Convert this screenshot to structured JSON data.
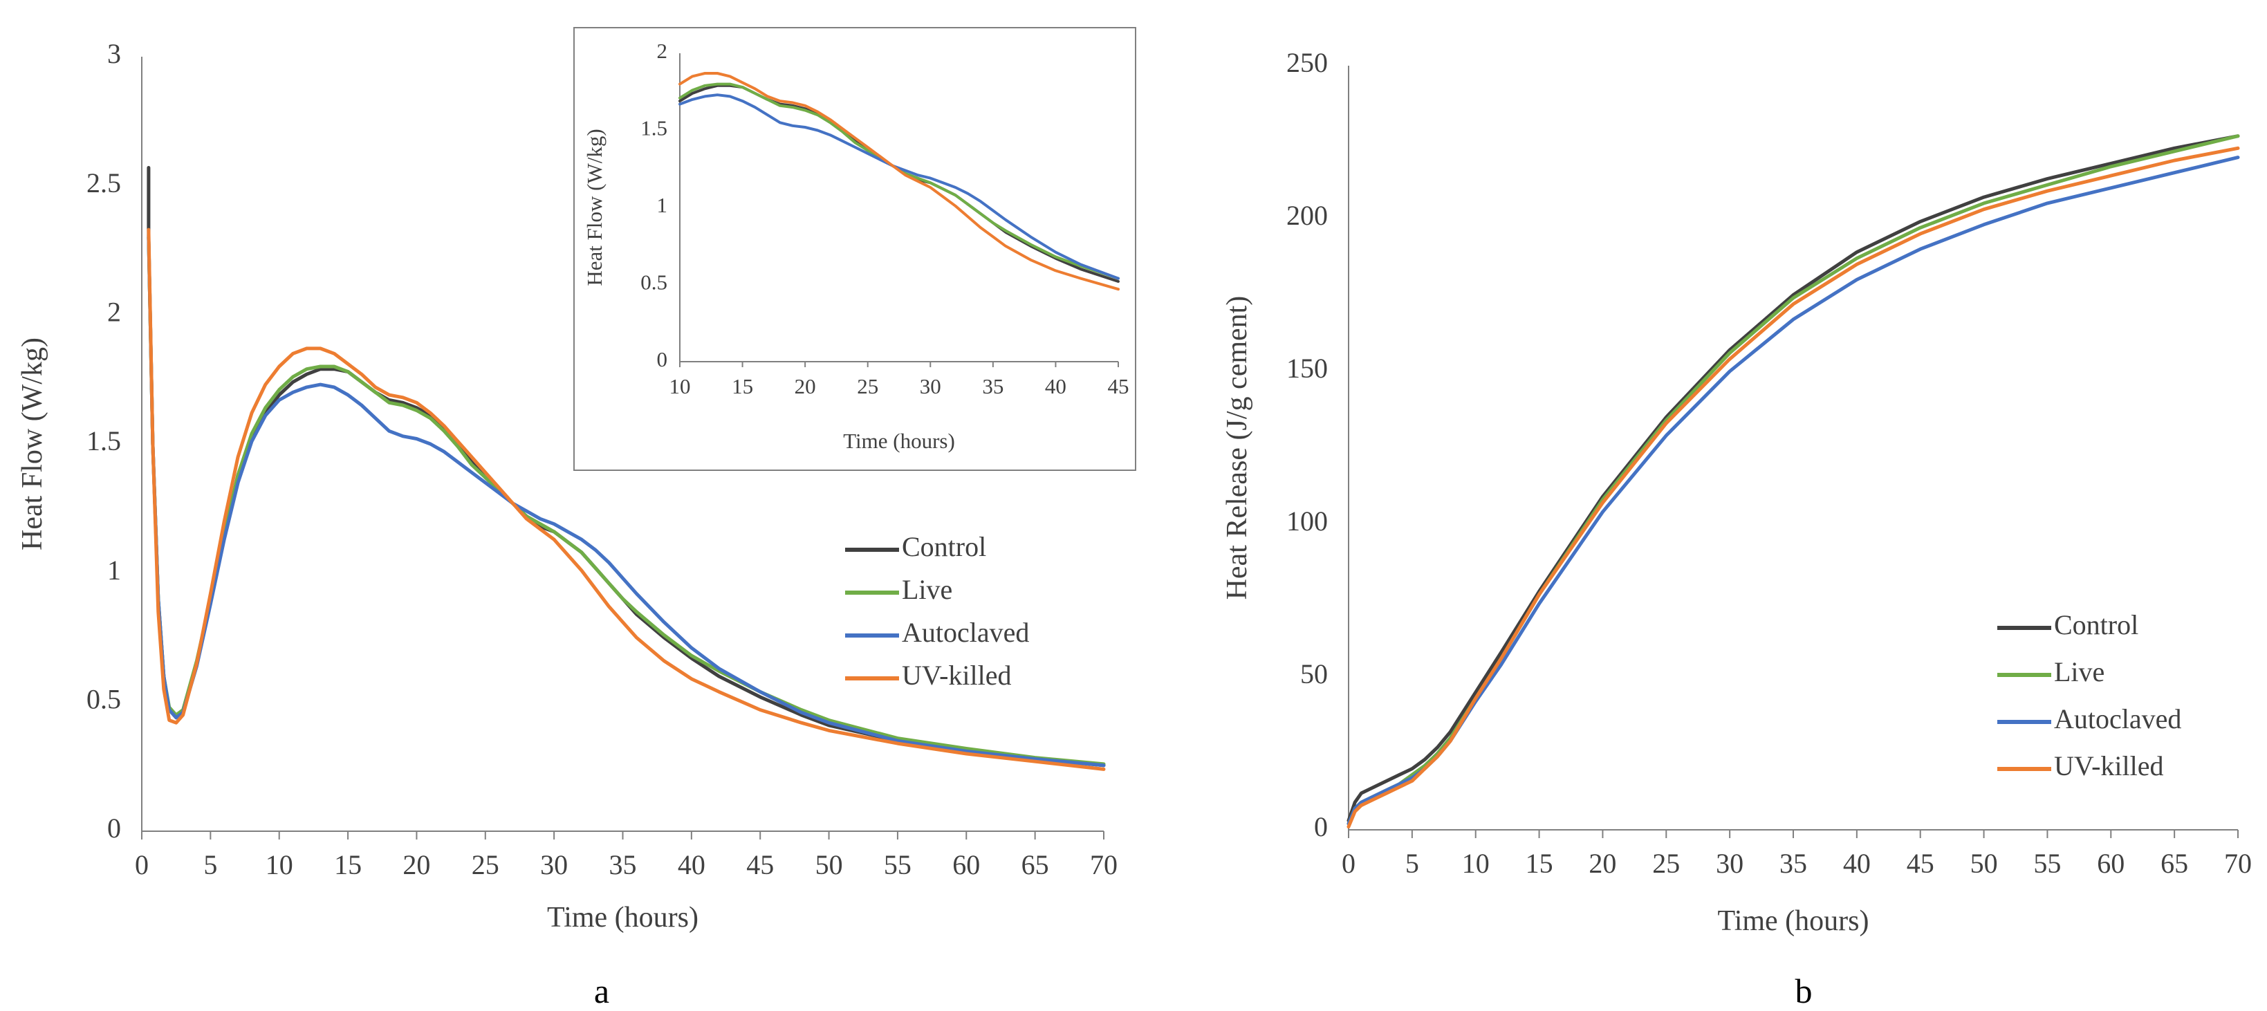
{
  "colors": {
    "Control": "#404040",
    "Live": "#70ad47",
    "Autoclaved": "#4472c4",
    "UV-killed": "#ed7d31"
  },
  "chart_data": [
    {
      "id": "a",
      "panel_label": "a",
      "type": "line",
      "title": "",
      "xlabel": "Time (hours)",
      "ylabel": "Heat Flow (W/kg)",
      "xlim": [
        0,
        70
      ],
      "ylim": [
        0,
        3
      ],
      "xticks": [
        "0",
        "5",
        "10",
        "15",
        "20",
        "25",
        "30",
        "35",
        "40",
        "45",
        "50",
        "55",
        "60",
        "65",
        "70"
      ],
      "yticks": [
        "0",
        "0.5",
        "1",
        "1.5",
        "2",
        "2.5",
        "3"
      ],
      "legend_position": "right-middle",
      "series": [
        {
          "name": "Control",
          "x": [
            0.5,
            0.5,
            0.8,
            1.2,
            1.6,
            2.0,
            2.5,
            3.0,
            4,
            5,
            6,
            7,
            8,
            9,
            10,
            11,
            12,
            13,
            14,
            15,
            16,
            17,
            18,
            19,
            20,
            21,
            22,
            23,
            24,
            25,
            26,
            27,
            28,
            29,
            30,
            31,
            32,
            33,
            34,
            35,
            36,
            38,
            40,
            42,
            45,
            48,
            50,
            55,
            60,
            65,
            70
          ],
          "y": [
            2.57,
            2.3,
            1.5,
            0.9,
            0.6,
            0.47,
            0.44,
            0.46,
            0.65,
            0.9,
            1.15,
            1.38,
            1.53,
            1.62,
            1.69,
            1.74,
            1.77,
            1.79,
            1.79,
            1.78,
            1.74,
            1.7,
            1.67,
            1.66,
            1.64,
            1.61,
            1.56,
            1.5,
            1.43,
            1.37,
            1.32,
            1.27,
            1.22,
            1.18,
            1.16,
            1.12,
            1.08,
            1.02,
            0.96,
            0.9,
            0.84,
            0.75,
            0.67,
            0.6,
            0.52,
            0.45,
            0.41,
            0.35,
            0.31,
            0.28,
            0.255
          ]
        },
        {
          "name": "Live",
          "x": [
            0.5,
            0.8,
            1.2,
            1.6,
            2.0,
            2.5,
            3.0,
            4,
            5,
            6,
            7,
            8,
            9,
            10,
            11,
            12,
            13,
            14,
            15,
            16,
            17,
            18,
            19,
            20,
            21,
            22,
            23,
            24,
            25,
            26,
            27,
            28,
            29,
            30,
            31,
            32,
            33,
            34,
            35,
            36,
            38,
            40,
            42,
            45,
            48,
            50,
            55,
            60,
            65,
            70
          ],
          "y": [
            2.3,
            1.5,
            0.9,
            0.6,
            0.48,
            0.45,
            0.47,
            0.66,
            0.9,
            1.15,
            1.38,
            1.54,
            1.64,
            1.71,
            1.76,
            1.79,
            1.8,
            1.8,
            1.78,
            1.74,
            1.7,
            1.66,
            1.65,
            1.63,
            1.6,
            1.55,
            1.49,
            1.42,
            1.37,
            1.32,
            1.27,
            1.22,
            1.19,
            1.16,
            1.12,
            1.08,
            1.02,
            0.96,
            0.9,
            0.85,
            0.76,
            0.68,
            0.62,
            0.54,
            0.47,
            0.43,
            0.36,
            0.32,
            0.285,
            0.26
          ]
        },
        {
          "name": "Autoclaved",
          "x": [
            0.5,
            0.8,
            1.2,
            1.6,
            2.0,
            2.5,
            3.0,
            4,
            5,
            6,
            7,
            8,
            9,
            10,
            11,
            12,
            13,
            14,
            15,
            16,
            17,
            18,
            19,
            20,
            21,
            22,
            23,
            24,
            25,
            26,
            27,
            28,
            29,
            30,
            31,
            32,
            33,
            34,
            35,
            36,
            38,
            40,
            42,
            45,
            48,
            50,
            55,
            60,
            65,
            70
          ],
          "y": [
            2.3,
            1.5,
            0.9,
            0.6,
            0.47,
            0.44,
            0.46,
            0.64,
            0.88,
            1.13,
            1.35,
            1.51,
            1.61,
            1.67,
            1.7,
            1.72,
            1.73,
            1.72,
            1.69,
            1.65,
            1.6,
            1.55,
            1.53,
            1.52,
            1.5,
            1.47,
            1.43,
            1.39,
            1.35,
            1.31,
            1.27,
            1.24,
            1.21,
            1.19,
            1.16,
            1.13,
            1.09,
            1.04,
            0.98,
            0.92,
            0.81,
            0.71,
            0.63,
            0.54,
            0.46,
            0.42,
            0.35,
            0.31,
            0.28,
            0.255
          ]
        },
        {
          "name": "UV-killed",
          "x": [
            0.5,
            0.8,
            1.2,
            1.6,
            2.0,
            2.5,
            3.0,
            4,
            5,
            6,
            7,
            8,
            9,
            10,
            11,
            12,
            13,
            14,
            15,
            16,
            17,
            18,
            19,
            20,
            21,
            22,
            23,
            24,
            25,
            26,
            27,
            28,
            29,
            30,
            31,
            32,
            33,
            34,
            35,
            36,
            38,
            40,
            42,
            45,
            48,
            50,
            55,
            60,
            65,
            70
          ],
          "y": [
            2.33,
            1.5,
            0.85,
            0.55,
            0.43,
            0.42,
            0.45,
            0.65,
            0.92,
            1.2,
            1.45,
            1.62,
            1.73,
            1.8,
            1.85,
            1.87,
            1.87,
            1.85,
            1.81,
            1.77,
            1.72,
            1.69,
            1.68,
            1.66,
            1.62,
            1.57,
            1.51,
            1.45,
            1.39,
            1.33,
            1.27,
            1.21,
            1.17,
            1.13,
            1.07,
            1.01,
            0.94,
            0.87,
            0.81,
            0.75,
            0.66,
            0.59,
            0.54,
            0.47,
            0.42,
            0.39,
            0.34,
            0.3,
            0.27,
            0.24
          ]
        }
      ]
    },
    {
      "id": "a-inset",
      "type": "line",
      "title": "",
      "xlabel": "Time (hours)",
      "ylabel": "Heat Flow (W/kg)",
      "xlim": [
        10,
        45
      ],
      "ylim": [
        0,
        2
      ],
      "xticks": [
        "10",
        "15",
        "20",
        "25",
        "30",
        "35",
        "40",
        "45"
      ],
      "yticks": [
        "0",
        "0.5",
        "1",
        "1.5",
        "2"
      ],
      "series": [
        {
          "name": "Control",
          "x": [
            10,
            11,
            12,
            13,
            14,
            15,
            16,
            17,
            18,
            19,
            20,
            21,
            22,
            23,
            24,
            25,
            26,
            27,
            28,
            29,
            30,
            31,
            32,
            33,
            34,
            35,
            36,
            38,
            40,
            42,
            45
          ],
          "y": [
            1.69,
            1.74,
            1.77,
            1.79,
            1.79,
            1.78,
            1.74,
            1.7,
            1.67,
            1.66,
            1.64,
            1.61,
            1.56,
            1.5,
            1.43,
            1.37,
            1.32,
            1.27,
            1.22,
            1.18,
            1.16,
            1.12,
            1.08,
            1.02,
            0.96,
            0.9,
            0.84,
            0.75,
            0.67,
            0.6,
            0.52
          ]
        },
        {
          "name": "Live",
          "x": [
            10,
            11,
            12,
            13,
            14,
            15,
            16,
            17,
            18,
            19,
            20,
            21,
            22,
            23,
            24,
            25,
            26,
            27,
            28,
            29,
            30,
            31,
            32,
            33,
            34,
            35,
            36,
            38,
            40,
            42,
            45
          ],
          "y": [
            1.71,
            1.76,
            1.79,
            1.8,
            1.8,
            1.78,
            1.74,
            1.7,
            1.66,
            1.65,
            1.63,
            1.6,
            1.55,
            1.49,
            1.42,
            1.37,
            1.32,
            1.27,
            1.22,
            1.19,
            1.16,
            1.12,
            1.08,
            1.02,
            0.96,
            0.9,
            0.85,
            0.76,
            0.68,
            0.62,
            0.54
          ]
        },
        {
          "name": "Autoclaved",
          "x": [
            10,
            11,
            12,
            13,
            14,
            15,
            16,
            17,
            18,
            19,
            20,
            21,
            22,
            23,
            24,
            25,
            26,
            27,
            28,
            29,
            30,
            31,
            32,
            33,
            34,
            35,
            36,
            38,
            40,
            42,
            45
          ],
          "y": [
            1.67,
            1.7,
            1.72,
            1.73,
            1.72,
            1.69,
            1.65,
            1.6,
            1.55,
            1.53,
            1.52,
            1.5,
            1.47,
            1.43,
            1.39,
            1.35,
            1.31,
            1.27,
            1.24,
            1.21,
            1.19,
            1.16,
            1.13,
            1.09,
            1.04,
            0.98,
            0.92,
            0.81,
            0.71,
            0.63,
            0.54
          ]
        },
        {
          "name": "UV-killed",
          "x": [
            10,
            11,
            12,
            13,
            14,
            15,
            16,
            17,
            18,
            19,
            20,
            21,
            22,
            23,
            24,
            25,
            26,
            27,
            28,
            29,
            30,
            31,
            32,
            33,
            34,
            35,
            36,
            38,
            40,
            42,
            45
          ],
          "y": [
            1.8,
            1.85,
            1.87,
            1.87,
            1.85,
            1.81,
            1.77,
            1.72,
            1.69,
            1.68,
            1.66,
            1.62,
            1.57,
            1.51,
            1.45,
            1.39,
            1.33,
            1.27,
            1.21,
            1.17,
            1.13,
            1.07,
            1.01,
            0.94,
            0.87,
            0.81,
            0.75,
            0.66,
            0.59,
            0.54,
            0.47
          ]
        }
      ]
    },
    {
      "id": "b",
      "panel_label": "b",
      "type": "line",
      "title": "",
      "xlabel": "Time (hours)",
      "ylabel": "Heat Release (J/g cement)",
      "xlim": [
        0,
        70
      ],
      "ylim": [
        0,
        250
      ],
      "xticks": [
        "0",
        "5",
        "10",
        "15",
        "20",
        "25",
        "30",
        "35",
        "40",
        "45",
        "50",
        "55",
        "60",
        "65",
        "70"
      ],
      "yticks": [
        "0",
        "50",
        "100",
        "150",
        "200",
        "250"
      ],
      "legend_position": "bottom-right",
      "series": [
        {
          "name": "Control",
          "x": [
            0,
            0.5,
            1,
            2,
            3,
            4,
            5,
            6,
            7,
            8,
            10,
            12,
            15,
            20,
            25,
            30,
            35,
            40,
            45,
            50,
            55,
            60,
            65,
            70
          ],
          "y": [
            3,
            9,
            12,
            14,
            16,
            18,
            20,
            23,
            27,
            32,
            45,
            58,
            78,
            109,
            135,
            157,
            175,
            189,
            199,
            207,
            213,
            218,
            223,
            227
          ]
        },
        {
          "name": "Live",
          "x": [
            0,
            0.5,
            1,
            2,
            3,
            4,
            5,
            6,
            7,
            8,
            10,
            12,
            15,
            20,
            25,
            30,
            35,
            40,
            45,
            50,
            55,
            60,
            65,
            70
          ],
          "y": [
            2,
            7,
            9,
            11,
            13,
            15,
            18,
            21,
            25,
            30,
            43,
            56,
            77,
            108,
            134,
            156,
            174,
            187,
            197,
            205,
            211,
            217,
            222,
            227
          ]
        },
        {
          "name": "Autoclaved",
          "x": [
            0,
            0.5,
            1,
            2,
            3,
            4,
            5,
            6,
            7,
            8,
            10,
            12,
            15,
            20,
            25,
            30,
            35,
            40,
            45,
            50,
            55,
            60,
            65,
            70
          ],
          "y": [
            2,
            7,
            9,
            11,
            13,
            15,
            17,
            20,
            24,
            29,
            42,
            54,
            74,
            104,
            129,
            150,
            167,
            180,
            190,
            198,
            205,
            210,
            215,
            220
          ]
        },
        {
          "name": "UV-killed",
          "x": [
            0,
            0.5,
            1,
            2,
            3,
            4,
            5,
            6,
            7,
            8,
            10,
            12,
            15,
            20,
            25,
            30,
            35,
            40,
            45,
            50,
            55,
            60,
            65,
            70
          ],
          "y": [
            1,
            6,
            8,
            10,
            12,
            14,
            16,
            20,
            24,
            29,
            43,
            56,
            77,
            107,
            133,
            154,
            172,
            185,
            195,
            203,
            209,
            214,
            219,
            223
          ]
        }
      ]
    }
  ]
}
